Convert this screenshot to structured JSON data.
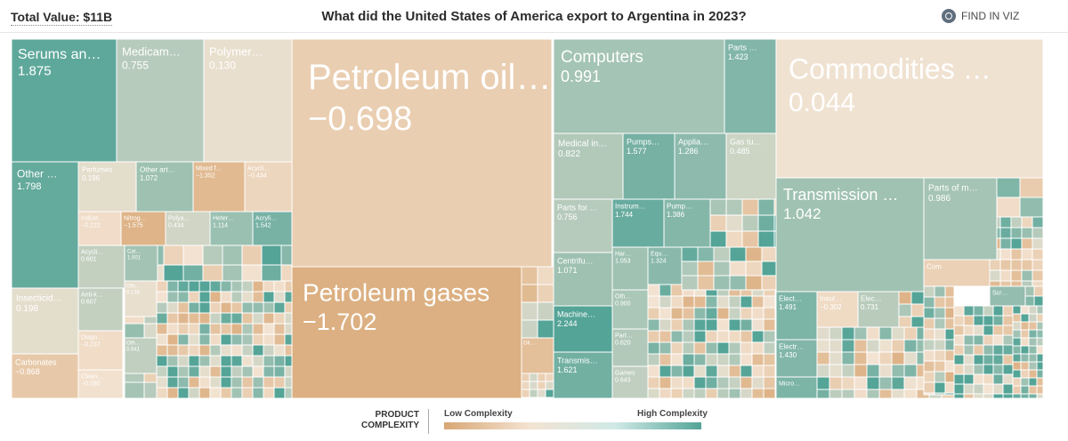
{
  "header": {
    "total_label": "Total Value: $11B",
    "title": "What did the United States of America export to Argentina in 2023?",
    "find_label": "FIND IN VIZ",
    "find_icon": "search-icon"
  },
  "legend": {
    "title_line1": "PRODUCT",
    "title_line2": "COMPLEXITY",
    "low_label": "Low Complexity",
    "high_label": "High Complexity",
    "low_color": "#d8a774",
    "high_color": "#54a497"
  },
  "chart_data": {
    "type": "treemap",
    "title": "What did the United States of America export to Argentina in 2023?",
    "total": "$11B",
    "color_scale": {
      "metric": "product complexity",
      "min": -2.0,
      "max": 2.0,
      "low": "#d8a774",
      "mid": "#f3e3d2",
      "high": "#54a497"
    },
    "items": [
      {
        "label": "Serums an…",
        "value": "1.875",
        "pci": 1.875
      },
      {
        "label": "Medicam…",
        "value": "0.755",
        "pci": 0.755
      },
      {
        "label": "Polymer…",
        "value": "0.130",
        "pci": 0.13
      },
      {
        "label": "Other …",
        "value": "1.798",
        "pci": 1.798
      },
      {
        "label": "Perfumes",
        "value": "0.196",
        "pci": 0.196
      },
      {
        "label": "Other art…",
        "value": "1.072",
        "pci": 1.072
      },
      {
        "label": "Mixed f…",
        "value": "−1.352",
        "pci": -1.352
      },
      {
        "label": "Acycli…",
        "value": "−0.434",
        "pci": -0.434
      },
      {
        "label": "Indust…",
        "value": "−0.222",
        "pci": -0.222
      },
      {
        "label": "Nitrog…",
        "value": "−1.575",
        "pci": -1.575
      },
      {
        "label": "Polya…",
        "value": "0.434",
        "pci": 0.434
      },
      {
        "label": "Heter…",
        "value": "1.114",
        "pci": 1.114
      },
      {
        "label": "Acryli…",
        "value": "1.542",
        "pci": 1.542
      },
      {
        "label": "Insecticid…",
        "value": "0.198",
        "pci": 0.198
      },
      {
        "label": "Acycli…",
        "value": "0.601",
        "pci": 0.601
      },
      {
        "label": "Cat…",
        "value": "1.001",
        "pci": 1.001
      },
      {
        "label": "Anti-k…",
        "value": "0.607",
        "pci": 0.607
      },
      {
        "label": "Oth…",
        "value": "0.134",
        "pci": 0.134
      },
      {
        "label": "Diagn…",
        "value": "−0.237",
        "pci": -0.237
      },
      {
        "label": "Oth…",
        "value": "0.641",
        "pci": 0.641
      },
      {
        "label": "Carbonates",
        "value": "−0.868",
        "pci": -0.868
      },
      {
        "label": "Clean…",
        "value": "−0.080",
        "pci": -0.08
      },
      {
        "label": "Petroleum oil…",
        "value": "−0.698",
        "pci": -0.698
      },
      {
        "label": "Petroleum gases",
        "value": "−1.702",
        "pci": -1.702
      },
      {
        "label": "Oil…",
        "value": "",
        "pci": -1.2
      },
      {
        "label": "Computers",
        "value": "0.991",
        "pci": 0.991
      },
      {
        "label": "Parts …",
        "value": "1.423",
        "pci": 1.423
      },
      {
        "label": "Medical in…",
        "value": "0.822",
        "pci": 0.822
      },
      {
        "label": "Pumps…",
        "value": "1.577",
        "pci": 1.577
      },
      {
        "label": "Applia…",
        "value": "1.286",
        "pci": 1.286
      },
      {
        "label": "Gas tu…",
        "value": "0.485",
        "pci": 0.485
      },
      {
        "label": "Parts for …",
        "value": "0.756",
        "pci": 0.756
      },
      {
        "label": "Instrum…",
        "value": "1.744",
        "pci": 1.744
      },
      {
        "label": "Pump…",
        "value": "1.386",
        "pci": 1.386
      },
      {
        "label": "Har…",
        "value": "1.053",
        "pci": 1.053
      },
      {
        "label": "Equ…",
        "value": "1.324",
        "pci": 1.324
      },
      {
        "label": "Centrifu…",
        "value": "1.071",
        "pci": 1.071
      },
      {
        "label": "Oth…",
        "value": "0.900",
        "pci": 0.9
      },
      {
        "label": "Machine…",
        "value": "2.244",
        "pci": 2.244
      },
      {
        "label": "Part…",
        "value": "0.820",
        "pci": 0.82
      },
      {
        "label": "Transmis…",
        "value": "1.621",
        "pci": 1.621
      },
      {
        "label": "Games",
        "value": "0.643",
        "pci": 0.643
      },
      {
        "label": "Commodities …",
        "value": "0.044",
        "pci": 0.044
      },
      {
        "label": "Transmission …",
        "value": "1.042",
        "pci": 1.042
      },
      {
        "label": "Parts of m…",
        "value": "0.986",
        "pci": 0.986
      },
      {
        "label": "Com",
        "value": "",
        "pci": -0.6
      },
      {
        "label": "Scr…",
        "value": "",
        "pci": 1.2
      },
      {
        "label": "Elect…",
        "value": "1.491",
        "pci": 1.491
      },
      {
        "label": "Insul…",
        "value": "−0.302",
        "pci": -0.302
      },
      {
        "label": "Elec…",
        "value": "0.731",
        "pci": 0.731
      },
      {
        "label": "Electr…",
        "value": "1.430",
        "pci": 1.43
      },
      {
        "label": "Micro…",
        "value": "",
        "pci": 1.5
      }
    ]
  }
}
